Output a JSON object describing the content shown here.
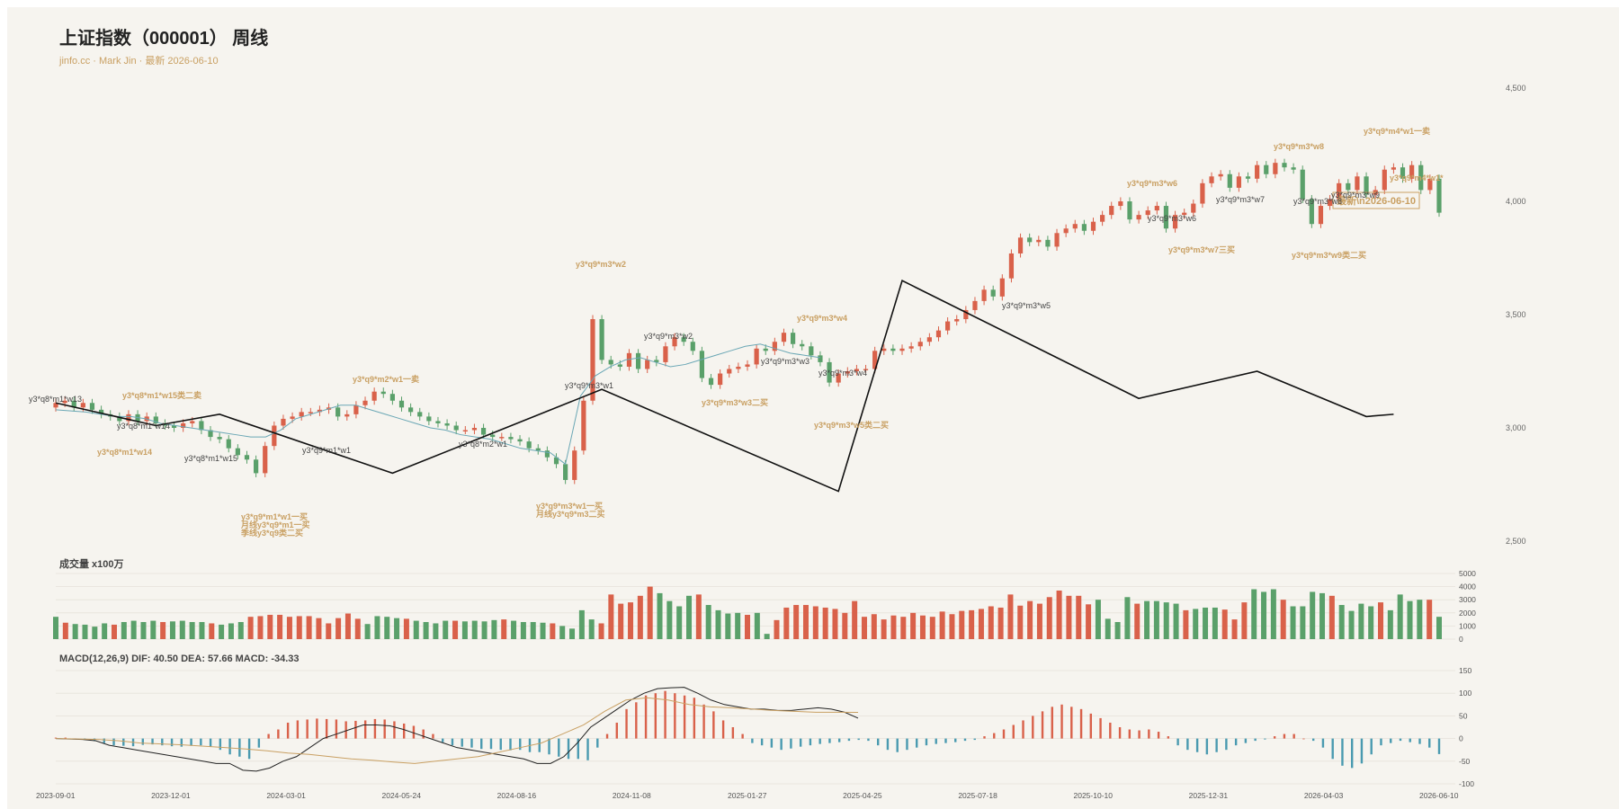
{
  "header": {
    "title": "上证指数（000001） 周线",
    "subtitle": "jinfo.cc · Mark Jin · 最新 2026-06-10"
  },
  "volume_title": "成交量 x100万",
  "macd_title": "MACD(12,26,9) DIF: 40.50 DEA: 57.66 MACD: -34.33",
  "colors": {
    "up": "#d9614a",
    "down": "#5aa06a",
    "ma": "#6aa7b5",
    "zigzag": "#111111",
    "annotation_gold": "#c9a063",
    "annotation_dark": "#444444",
    "dif": "#222222",
    "dea": "#c9a063",
    "macd_neg": "#4a9ab0",
    "macd_pos": "#d9614a"
  },
  "chart_data": [
    {
      "type": "candlestick",
      "title": "上证指数（000001） 周线",
      "ylim": [
        2500,
        4500
      ],
      "y_ticks": [
        "2,500",
        "3,000",
        "3,500",
        "4,000",
        "4,500"
      ],
      "x_ticks": [
        "2023-09-01",
        "2023-12-01",
        "2024-03-01",
        "2024-05-24",
        "2024-08-16",
        "2024-11-08",
        "2025-01-27",
        "2025-04-25",
        "2025-07-18",
        "2025-10-10",
        "2025-12-31",
        "2026-04-03",
        "2026-06-10"
      ],
      "close": [
        3110,
        3120,
        3090,
        3110,
        3080,
        3060,
        3050,
        3030,
        3060,
        3030,
        3050,
        3020,
        3010,
        3000,
        3020,
        3030,
        2990,
        2960,
        2950,
        2910,
        2880,
        2860,
        2800,
        2920,
        3010,
        3040,
        3050,
        3070,
        3070,
        3080,
        3090,
        3050,
        3060,
        3100,
        3120,
        3160,
        3150,
        3120,
        3090,
        3070,
        3050,
        3030,
        3020,
        3010,
        2990,
        2990,
        3000,
        2970,
        2960,
        2960,
        2950,
        2940,
        2910,
        2900,
        2870,
        2840,
        2770,
        2900,
        3120,
        3480,
        3300,
        3280,
        3270,
        3330,
        3260,
        3300,
        3290,
        3360,
        3400,
        3380,
        3340,
        3220,
        3190,
        3240,
        3260,
        3270,
        3280,
        3350,
        3340,
        3380,
        3420,
        3370,
        3360,
        3320,
        3290,
        3200,
        3240,
        3250,
        3260,
        3260,
        3340,
        3350,
        3340,
        3350,
        3360,
        3380,
        3400,
        3430,
        3470,
        3480,
        3520,
        3560,
        3610,
        3580,
        3660,
        3770,
        3840,
        3820,
        3830,
        3800,
        3860,
        3880,
        3900,
        3870,
        3910,
        3940,
        3980,
        4000,
        3920,
        3940,
        3960,
        3980,
        3880,
        3940,
        3950,
        3990,
        4080,
        4110,
        4120,
        4060,
        4110,
        4100,
        4160,
        4120,
        4170,
        4150,
        4140,
        4010,
        3900,
        3980,
        4010,
        4080,
        4050,
        4110,
        4030,
        4050,
        4140,
        4150,
        4100,
        4160,
        4050,
        4100,
        3950
      ],
      "ma_approx": [
        3080,
        3075,
        3070,
        3060,
        3050,
        3050,
        3040,
        3020,
        3010,
        3000,
        2990,
        2980,
        2970,
        2960,
        2960,
        2990,
        3040,
        3060,
        3080,
        3100,
        3100,
        3080,
        3060,
        3040,
        3020,
        3000,
        2990,
        2970,
        2960,
        2950,
        2930,
        2910,
        2900,
        2890,
        2840,
        3140,
        3230,
        3270,
        3300,
        3310,
        3290,
        3270,
        3280,
        3300,
        3320,
        3340,
        3360,
        3370,
        3350,
        3330,
        3320,
        3310
      ]
    },
    {
      "type": "bar",
      "title": "成交量 x100万",
      "ylim": [
        0,
        5000
      ],
      "y_ticks": [
        "0",
        "1000",
        "2000",
        "3000",
        "4000",
        "5000"
      ],
      "values": [
        1700,
        1250,
        1150,
        1100,
        950,
        1200,
        1100,
        1300,
        1400,
        1300,
        1400,
        1300,
        1350,
        1400,
        1300,
        1300,
        1200,
        1100,
        1200,
        1300,
        1700,
        1750,
        1850,
        1850,
        1700,
        1750,
        1750,
        1600,
        1200,
        1600,
        1950,
        1550,
        1150,
        1750,
        1700,
        1600,
        1550,
        1400,
        1300,
        1200,
        1400,
        1400,
        1350,
        1400,
        1350,
        1450,
        1500,
        1400,
        1300,
        1300,
        1250,
        1200,
        1000,
        800,
        2200,
        1500,
        1200,
        3400,
        2700,
        2800,
        3300,
        4000,
        3500,
        2900,
        2500,
        3300,
        3400,
        2600,
        2200,
        1950,
        2000,
        1850,
        2000,
        400,
        1450,
        2400,
        2600,
        2600,
        2500,
        2400,
        2300,
        2000,
        2900,
        1700,
        1900,
        1500,
        1800,
        1700,
        2000,
        1800,
        1700,
        2100,
        1900,
        2150,
        2200,
        2300,
        2500,
        2400,
        3400,
        2550,
        2900,
        2700,
        3200,
        3700,
        3300,
        3300,
        2650,
        3000,
        1550,
        1300,
        3200,
        2700,
        2900,
        2900,
        2800,
        2700,
        2200,
        2300,
        2400,
        2400,
        2250,
        1500,
        2800,
        3800,
        3600,
        3800,
        3000,
        2500,
        2500,
        3600,
        3500,
        3300,
        2600,
        2150,
        2700,
        2500,
        2800,
        2200,
        3400,
        2900,
        3000,
        3000,
        1700
      ]
    },
    {
      "type": "bar",
      "title": "MACD(12,26,9) DIF: 40.50 DEA: 57.66 MACD: -34.33",
      "ylim": [
        -100,
        150
      ],
      "y_ticks": [
        "-100",
        "-50",
        "0",
        "50",
        "100",
        "150"
      ],
      "values": [
        2,
        2,
        0,
        -3,
        -5,
        -10,
        -15,
        -16,
        -17,
        -14,
        -13,
        -15,
        -17,
        -18,
        -16,
        -15,
        -18,
        -25,
        -35,
        -40,
        -45,
        -20,
        10,
        20,
        35,
        40,
        42,
        44,
        43,
        42,
        38,
        39,
        40,
        43,
        42,
        38,
        33,
        28,
        20,
        10,
        -8,
        -15,
        -18,
        -20,
        -23,
        -23,
        -25,
        -26,
        -25,
        -30,
        -30,
        -35,
        -40,
        -45,
        -45,
        -48,
        -20,
        10,
        35,
        65,
        80,
        95,
        100,
        105,
        100,
        95,
        90,
        75,
        60,
        40,
        25,
        10,
        -10,
        -15,
        -20,
        -25,
        -22,
        -18,
        -15,
        -12,
        -10,
        -8,
        -5,
        -3,
        -5,
        -15,
        -25,
        -30,
        -25,
        -20,
        -15,
        -12,
        -10,
        -8,
        -5,
        -3,
        5,
        12,
        20,
        30,
        40,
        50,
        60,
        70,
        75,
        70,
        65,
        55,
        45,
        35,
        25,
        20,
        18,
        20,
        15,
        5,
        -15,
        -25,
        -30,
        -35,
        -30,
        -25,
        -15,
        -10,
        -5,
        -2,
        5,
        10,
        10,
        0,
        -5,
        -20,
        -45,
        -60,
        -65,
        -55,
        -35,
        -15,
        -10,
        -5,
        -8,
        -12,
        -20,
        -34.33
      ],
      "dif_approx": [
        0,
        -1,
        -2,
        -5,
        -15,
        -20,
        -25,
        -30,
        -35,
        -40,
        -45,
        -50,
        -55,
        -55,
        -70,
        -72,
        -65,
        -50,
        -40,
        -20,
        0,
        10,
        20,
        30,
        30,
        28,
        20,
        10,
        0,
        -10,
        -20,
        -25,
        -30,
        -35,
        -40,
        -45,
        -55,
        -55,
        -40,
        -10,
        25,
        45,
        65,
        85,
        100,
        110,
        112,
        113,
        100,
        85,
        75,
        70,
        65,
        65,
        62,
        62,
        65,
        68,
        65,
        58,
        45
      ],
      "dea_approx": [
        0,
        -1,
        -2,
        -5,
        -10,
        -12,
        -14,
        -17,
        -20,
        -23,
        -27,
        -32,
        -35,
        -40,
        -45,
        -48,
        -52,
        -55,
        -50,
        -45,
        -40,
        -30,
        -20,
        -10,
        10,
        30,
        60,
        85,
        90,
        85,
        75,
        70,
        68,
        65,
        62,
        60,
        58,
        58,
        57.66
      ]
    }
  ],
  "annotations": {
    "gold": [
      "y3*q8*m1*w15类二卖",
      "y3*q8*m1*w14",
      "y3*q9*m2*w1一卖",
      "y3*q9*m1*w1一买",
      "月线y3*q9*m1一买",
      "季线y3*q9类二买",
      "y3*q9*m3*w2",
      "y3*q9*m3*w1一买",
      "月线y3*q9*m3二买",
      "y3*q9*m3*w4",
      "y3*q9*m3*w3二买",
      "y3*q9*m3*w5类二买",
      "y3*q9*m3*w6",
      "y3*q9*m3*w7三买",
      "y3*q9*m3*w8",
      "y3*q9*m4*w1一卖",
      "y3*q9*m4*w1*",
      "y3*q9*m3*w9类二买",
      "最新\\n2026-06-10"
    ],
    "dark": [
      "y3*q8*m1*w13",
      "y3*q8*m1*w14",
      "y3*q8*m1*w15",
      "y3*q9*m1*w1",
      "y3*q8*m2*w1",
      "y3*q9*m3*w1",
      "y3*q9*m3*w2",
      "y3*q9*m3*w3",
      "y3*q9*m3*w4",
      "y3*q9*m3*w5",
      "y3*q9*m3*w6",
      "y3*q9*m3*w7",
      "y3*q9*m3*w8",
      "y3*q9*m3*w9"
    ]
  }
}
